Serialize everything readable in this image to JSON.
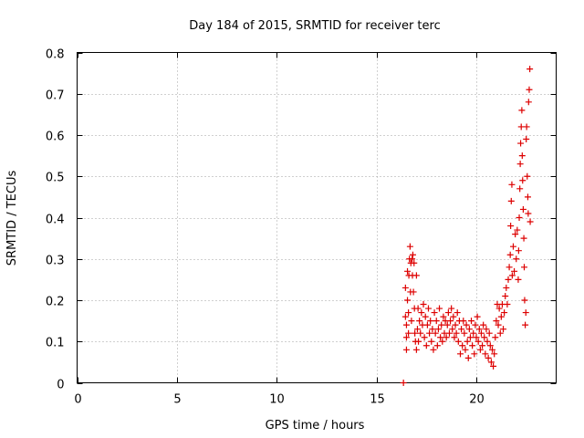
{
  "chart_data": {
    "type": "scatter",
    "title": "Day 184 of 2015, SRMTID for receiver terc",
    "xlabel": "GPS time / hours",
    "ylabel": "SRMTID / TECUs",
    "xlim": [
      0,
      24
    ],
    "ylim": [
      0,
      0.8
    ],
    "xticks": [
      0,
      5,
      10,
      15,
      20
    ],
    "xtick_labels": [
      "0",
      "5",
      "10",
      "15",
      "20"
    ],
    "yticks": [
      0,
      0.1,
      0.2,
      0.3,
      0.4,
      0.5,
      0.6,
      0.7,
      0.8
    ],
    "ytick_labels": [
      "0",
      "0.1",
      "0.2",
      "0.3",
      "0.4",
      "0.5",
      "0.6",
      "0.7",
      "0.8"
    ],
    "grid": true,
    "marker": "+",
    "color": "#dd0000",
    "series": [
      {
        "name": "SRMTID",
        "points": [
          [
            16.35,
            0.0
          ],
          [
            16.45,
            0.23
          ],
          [
            16.45,
            0.16
          ],
          [
            16.5,
            0.14
          ],
          [
            16.5,
            0.11
          ],
          [
            16.5,
            0.08
          ],
          [
            16.55,
            0.2
          ],
          [
            16.55,
            0.27
          ],
          [
            16.6,
            0.17
          ],
          [
            16.6,
            0.12
          ],
          [
            16.62,
            0.26
          ],
          [
            16.65,
            0.3
          ],
          [
            16.68,
            0.33
          ],
          [
            16.7,
            0.22
          ],
          [
            16.72,
            0.29
          ],
          [
            16.75,
            0.15
          ],
          [
            16.78,
            0.3
          ],
          [
            16.8,
            0.26
          ],
          [
            16.82,
            0.31
          ],
          [
            16.85,
            0.22
          ],
          [
            16.88,
            0.29
          ],
          [
            16.9,
            0.18
          ],
          [
            16.92,
            0.12
          ],
          [
            16.95,
            0.1
          ],
          [
            17.0,
            0.08
          ],
          [
            17.0,
            0.26
          ],
          [
            17.05,
            0.13
          ],
          [
            17.08,
            0.18
          ],
          [
            17.1,
            0.1
          ],
          [
            17.15,
            0.15
          ],
          [
            17.2,
            0.12
          ],
          [
            17.25,
            0.17
          ],
          [
            17.3,
            0.14
          ],
          [
            17.35,
            0.19
          ],
          [
            17.4,
            0.11
          ],
          [
            17.45,
            0.16
          ],
          [
            17.5,
            0.09
          ],
          [
            17.55,
            0.14
          ],
          [
            17.6,
            0.18
          ],
          [
            17.65,
            0.12
          ],
          [
            17.7,
            0.15
          ],
          [
            17.75,
            0.1
          ],
          [
            17.8,
            0.13
          ],
          [
            17.85,
            0.08
          ],
          [
            17.9,
            0.17
          ],
          [
            17.95,
            0.12
          ],
          [
            18.0,
            0.15
          ],
          [
            18.05,
            0.09
          ],
          [
            18.1,
            0.13
          ],
          [
            18.15,
            0.18
          ],
          [
            18.2,
            0.11
          ],
          [
            18.25,
            0.14
          ],
          [
            18.3,
            0.1
          ],
          [
            18.35,
            0.16
          ],
          [
            18.4,
            0.12
          ],
          [
            18.45,
            0.15
          ],
          [
            18.5,
            0.11
          ],
          [
            18.55,
            0.14
          ],
          [
            18.6,
            0.17
          ],
          [
            18.65,
            0.12
          ],
          [
            18.7,
            0.15
          ],
          [
            18.75,
            0.18
          ],
          [
            18.8,
            0.13
          ],
          [
            18.85,
            0.16
          ],
          [
            18.9,
            0.11
          ],
          [
            18.95,
            0.14
          ],
          [
            19.0,
            0.12
          ],
          [
            19.05,
            0.17
          ],
          [
            19.1,
            0.1
          ],
          [
            19.15,
            0.15
          ],
          [
            19.2,
            0.07
          ],
          [
            19.25,
            0.13
          ],
          [
            19.3,
            0.09
          ],
          [
            19.35,
            0.15
          ],
          [
            19.4,
            0.12
          ],
          [
            19.45,
            0.08
          ],
          [
            19.5,
            0.14
          ],
          [
            19.55,
            0.1
          ],
          [
            19.6,
            0.06
          ],
          [
            19.65,
            0.13
          ],
          [
            19.7,
            0.11
          ],
          [
            19.75,
            0.15
          ],
          [
            19.8,
            0.09
          ],
          [
            19.85,
            0.12
          ],
          [
            19.9,
            0.07
          ],
          [
            19.95,
            0.14
          ],
          [
            20.0,
            0.11
          ],
          [
            20.05,
            0.16
          ],
          [
            20.1,
            0.1
          ],
          [
            20.15,
            0.13
          ],
          [
            20.2,
            0.08
          ],
          [
            20.25,
            0.12
          ],
          [
            20.3,
            0.09
          ],
          [
            20.35,
            0.14
          ],
          [
            20.4,
            0.11
          ],
          [
            20.45,
            0.07
          ],
          [
            20.5,
            0.13
          ],
          [
            20.55,
            0.1
          ],
          [
            20.6,
            0.06
          ],
          [
            20.65,
            0.12
          ],
          [
            20.7,
            0.09
          ],
          [
            20.75,
            0.05
          ],
          [
            20.8,
            0.08
          ],
          [
            20.85,
            0.04
          ],
          [
            20.9,
            0.07
          ],
          [
            20.95,
            0.11
          ],
          [
            21.0,
            0.15
          ],
          [
            21.05,
            0.19
          ],
          [
            21.1,
            0.14
          ],
          [
            21.15,
            0.18
          ],
          [
            21.2,
            0.12
          ],
          [
            21.25,
            0.16
          ],
          [
            21.3,
            0.19
          ],
          [
            21.35,
            0.13
          ],
          [
            21.4,
            0.17
          ],
          [
            21.45,
            0.21
          ],
          [
            21.5,
            0.23
          ],
          [
            21.55,
            0.19
          ],
          [
            21.6,
            0.25
          ],
          [
            21.65,
            0.28
          ],
          [
            21.7,
            0.31
          ],
          [
            21.72,
            0.38
          ],
          [
            21.75,
            0.44
          ],
          [
            21.78,
            0.48
          ],
          [
            21.8,
            0.26
          ],
          [
            21.85,
            0.33
          ],
          [
            21.9,
            0.27
          ],
          [
            21.95,
            0.36
          ],
          [
            22.0,
            0.3
          ],
          [
            22.05,
            0.37
          ],
          [
            22.1,
            0.25
          ],
          [
            22.12,
            0.32
          ],
          [
            22.15,
            0.4
          ],
          [
            22.18,
            0.47
          ],
          [
            22.2,
            0.53
          ],
          [
            22.22,
            0.58
          ],
          [
            22.25,
            0.62
          ],
          [
            22.28,
            0.66
          ],
          [
            22.3,
            0.55
          ],
          [
            22.32,
            0.49
          ],
          [
            22.35,
            0.42
          ],
          [
            22.38,
            0.35
          ],
          [
            22.4,
            0.28
          ],
          [
            22.42,
            0.2
          ],
          [
            22.45,
            0.14
          ],
          [
            22.48,
            0.17
          ],
          [
            22.5,
            0.59
          ],
          [
            22.52,
            0.62
          ],
          [
            22.55,
            0.5
          ],
          [
            22.58,
            0.45
          ],
          [
            22.6,
            0.41
          ],
          [
            22.62,
            0.68
          ],
          [
            22.65,
            0.71
          ],
          [
            22.68,
            0.76
          ],
          [
            22.7,
            0.39
          ]
        ]
      }
    ]
  }
}
